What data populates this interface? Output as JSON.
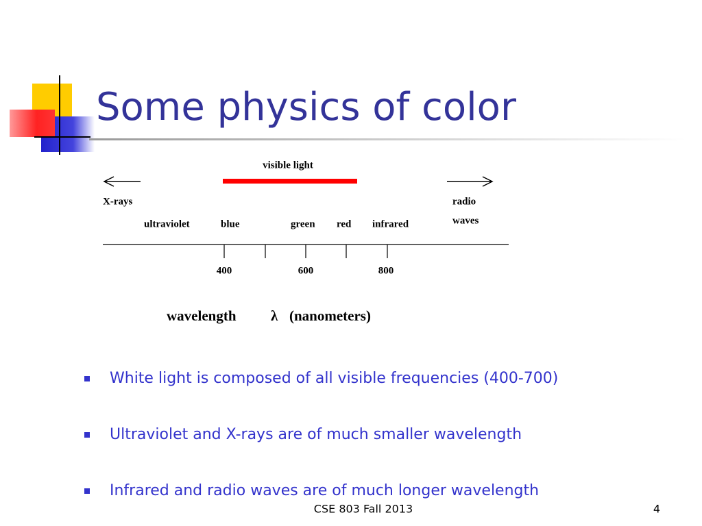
{
  "title": "Some physics of color",
  "diagram": {
    "visible_label": "visible light",
    "left_label": "X-rays",
    "right_label": [
      "radio",
      "waves"
    ],
    "bands": [
      "ultraviolet",
      "blue",
      "green",
      "red",
      "infrared"
    ],
    "ticks": [
      "400",
      "600",
      "800"
    ],
    "axis_label": [
      "wavelength",
      "λ",
      "(nanometers)"
    ]
  },
  "bullets": [
    "White light is composed of all visible frequencies (400-700)",
    "Ultraviolet and X-rays are of much smaller wavelength",
    "Infrared and radio waves are of much longer wavelength"
  ],
  "footer": {
    "text": "CSE 803 Fall 2013",
    "page": "4"
  }
}
